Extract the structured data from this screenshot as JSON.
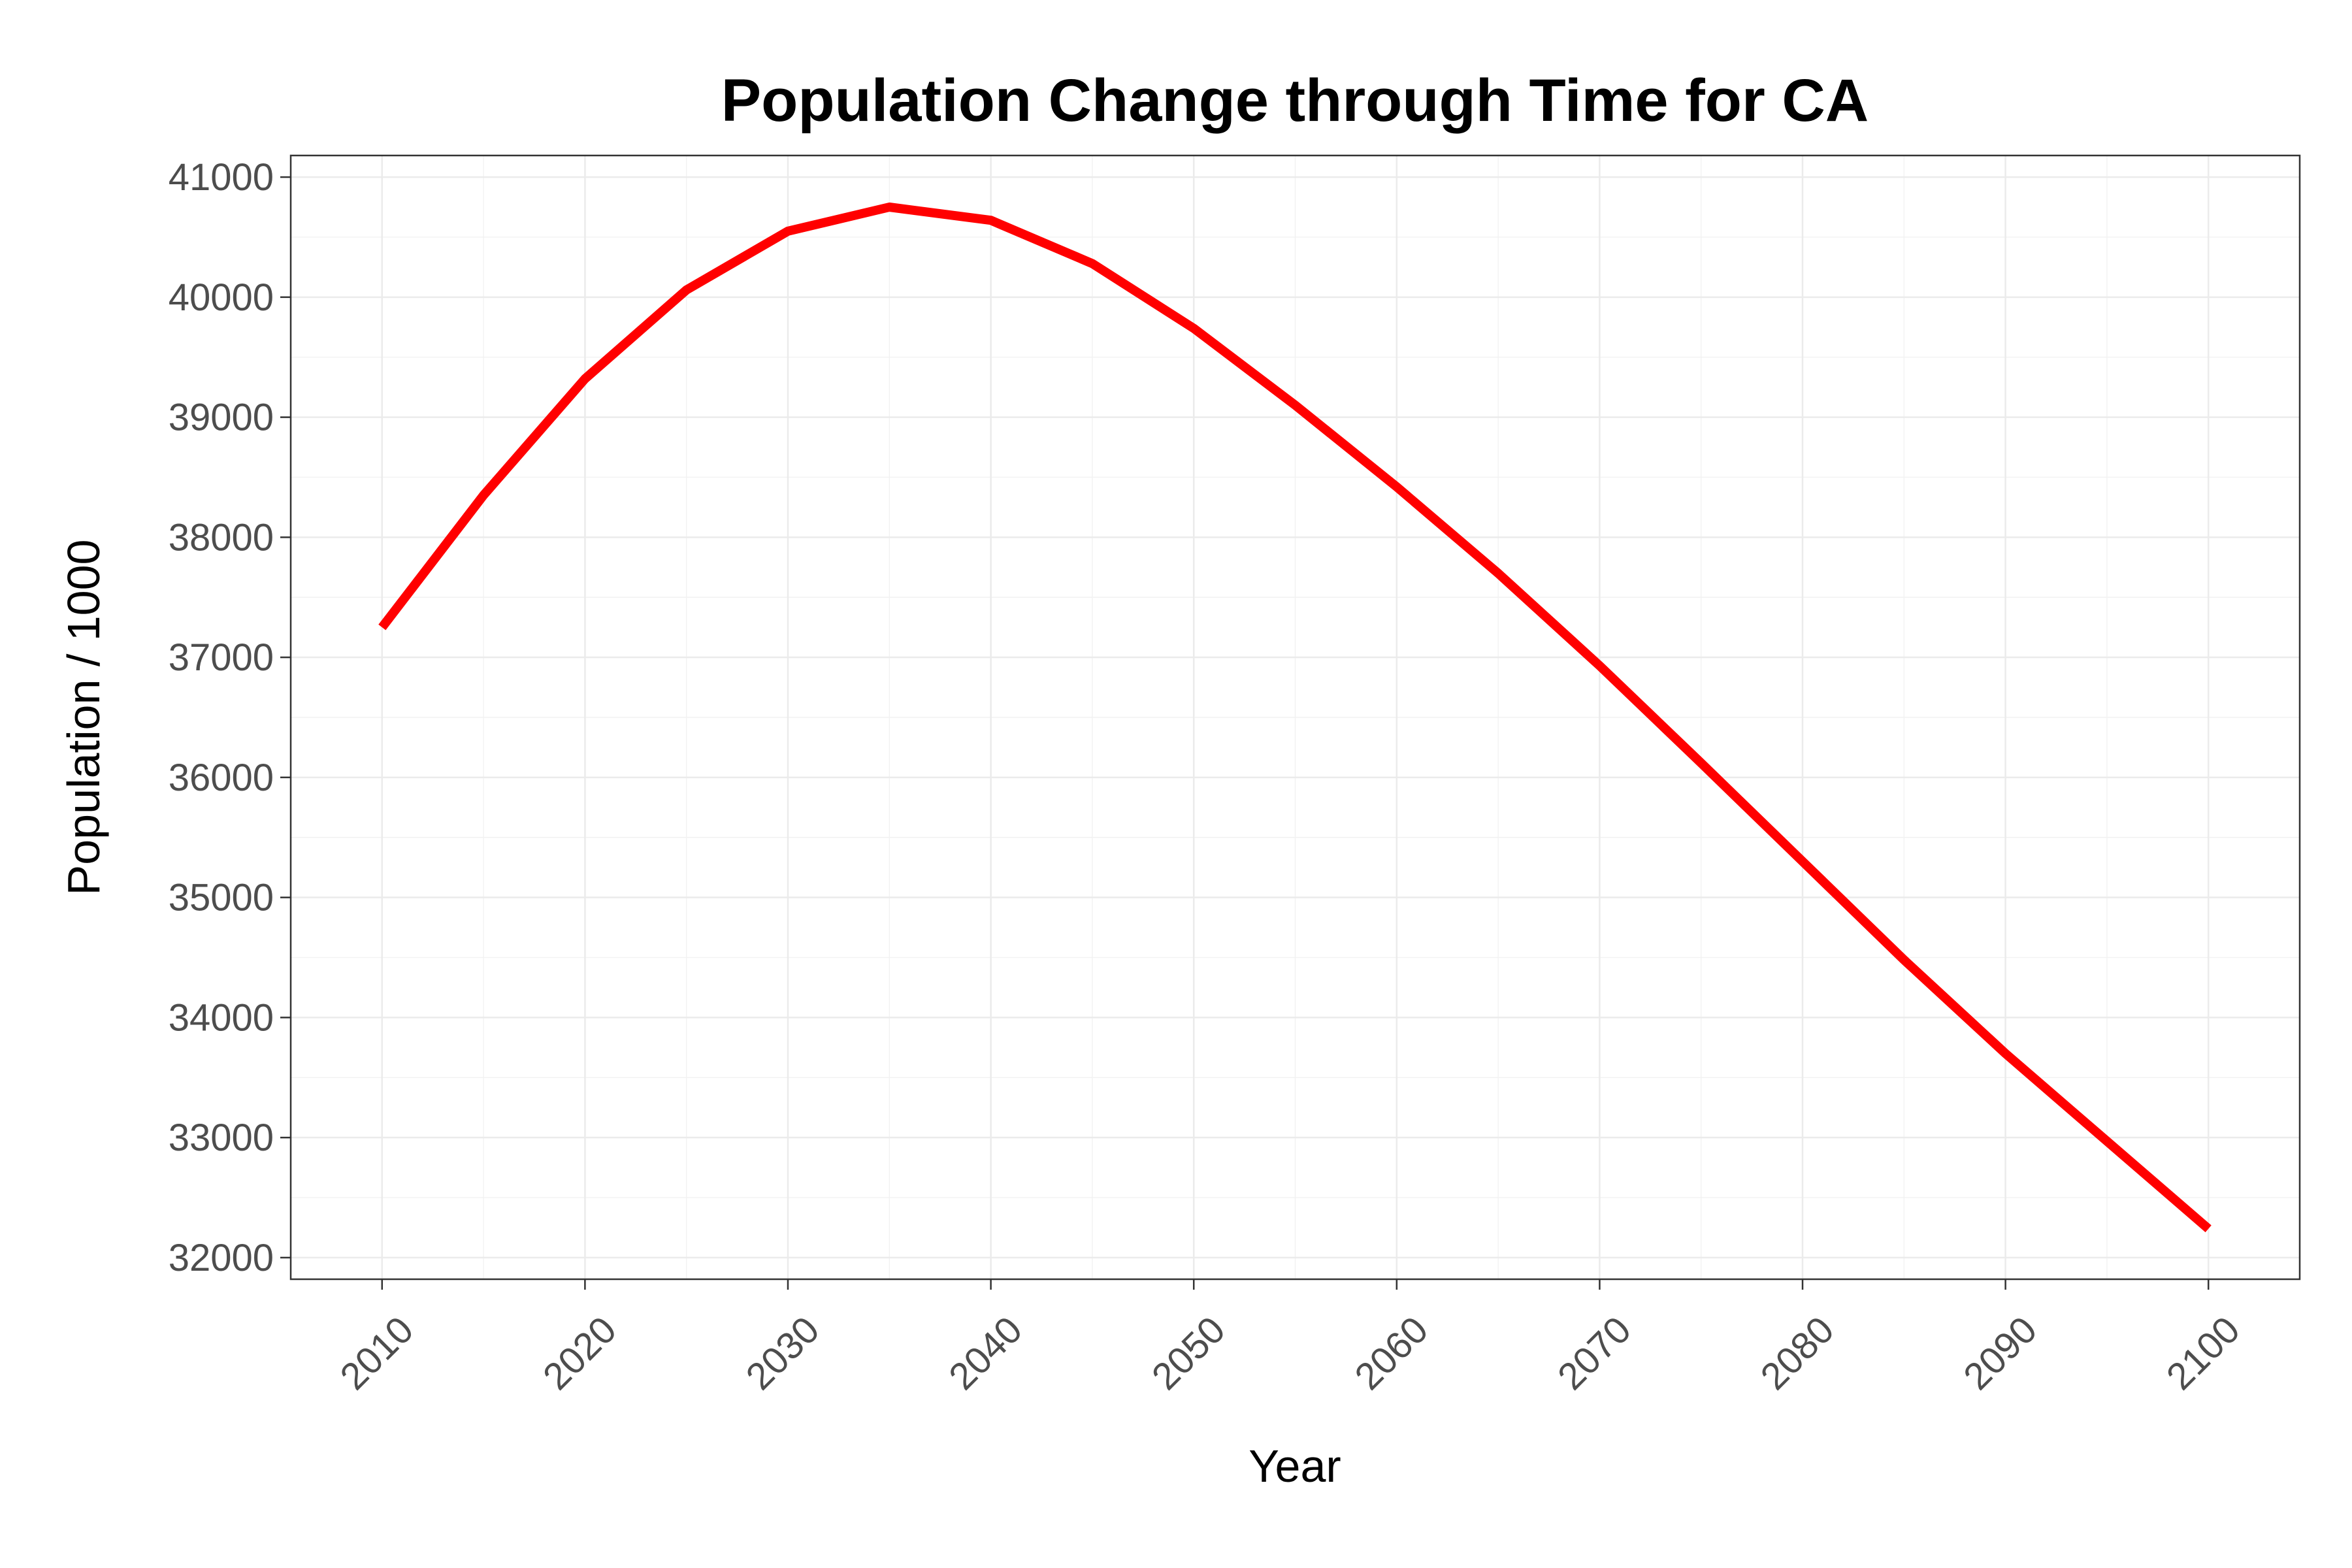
{
  "chart_data": {
    "type": "line",
    "title": "Population Change through Time for CA",
    "xlabel": "Year",
    "ylabel": "Population / 1000",
    "xlim": [
      2005.5,
      2104.5
    ],
    "ylim": [
      31820,
      41180
    ],
    "x_ticks": [
      2010,
      2020,
      2030,
      2040,
      2050,
      2060,
      2070,
      2080,
      2090,
      2100
    ],
    "y_ticks": [
      32000,
      33000,
      34000,
      35000,
      36000,
      37000,
      38000,
      39000,
      40000,
      41000
    ],
    "grid": true,
    "legend": "none",
    "series": [
      {
        "color": "#ff0000",
        "x": [
          2010,
          2015,
          2020,
          2025,
          2030,
          2035,
          2040,
          2045,
          2050,
          2055,
          2060,
          2065,
          2070,
          2075,
          2080,
          2085,
          2090,
          2095,
          2100
        ],
        "y": [
          37250,
          38350,
          39320,
          40060,
          40550,
          40750,
          40640,
          40280,
          39740,
          39100,
          38420,
          37700,
          36930,
          36120,
          35300,
          34480,
          33700,
          32970,
          32240
        ]
      }
    ]
  }
}
